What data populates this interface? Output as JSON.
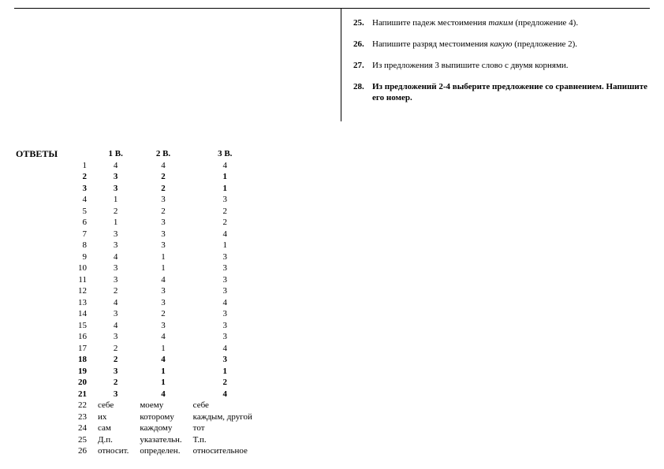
{
  "tasks": [
    {
      "num": "25.",
      "text_before": "Напишите падеж местоимения ",
      "italic": "таким",
      "text_after": " (предложение 4).",
      "bold": false
    },
    {
      "num": "26.",
      "text_before": "Напишите разряд местоимения ",
      "italic": "какую",
      "text_after": " (предложение 2).",
      "bold": false
    },
    {
      "num": "27.",
      "text_before": "Из предложения 3  выпишите слово с двумя корнями.",
      "italic": "",
      "text_after": "",
      "bold": false
    },
    {
      "num": "28.",
      "text_before": "Из предложений 2-4 выберите предложение со сравнением. Напишите его номер.",
      "italic": "",
      "text_after": "",
      "bold": true
    }
  ],
  "answers": {
    "label": "ОТВЕТЫ",
    "headers": [
      "",
      "1 В.",
      "2 В.",
      "3 В."
    ],
    "rows": [
      {
        "n": "1",
        "v": [
          "4",
          "4",
          "4"
        ],
        "bold": false
      },
      {
        "n": "2",
        "v": [
          "3",
          "2",
          "1"
        ],
        "bold": true
      },
      {
        "n": "3",
        "v": [
          "3",
          "2",
          "1"
        ],
        "bold": true
      },
      {
        "n": "4",
        "v": [
          "1",
          "3",
          "3"
        ],
        "bold": false
      },
      {
        "n": "5",
        "v": [
          "2",
          "2",
          "2"
        ],
        "bold": false
      },
      {
        "n": "6",
        "v": [
          "1",
          "3",
          "2"
        ],
        "bold": false
      },
      {
        "n": "7",
        "v": [
          "3",
          "3",
          "4"
        ],
        "bold": false
      },
      {
        "n": "8",
        "v": [
          "3",
          "3",
          "1"
        ],
        "bold": false
      },
      {
        "n": "9",
        "v": [
          "4",
          "1",
          "3"
        ],
        "bold": false
      },
      {
        "n": "10",
        "v": [
          "3",
          "1",
          "3"
        ],
        "bold": false
      },
      {
        "n": "11",
        "v": [
          "3",
          "4",
          "3"
        ],
        "bold": false
      },
      {
        "n": "12",
        "v": [
          "2",
          "3",
          "3"
        ],
        "bold": false
      },
      {
        "n": "13",
        "v": [
          "4",
          "3",
          "4"
        ],
        "bold": false
      },
      {
        "n": "14",
        "v": [
          "3",
          "2",
          "3"
        ],
        "bold": false
      },
      {
        "n": "15",
        "v": [
          "4",
          "3",
          "3"
        ],
        "bold": false
      },
      {
        "n": "16",
        "v": [
          "3",
          "4",
          "3"
        ],
        "bold": false
      },
      {
        "n": "17",
        "v": [
          "2",
          "1",
          "4"
        ],
        "bold": false
      },
      {
        "n": "18",
        "v": [
          "2",
          "4",
          "3"
        ],
        "bold": true
      },
      {
        "n": "19",
        "v": [
          "3",
          "1",
          "1"
        ],
        "bold": true
      },
      {
        "n": "20",
        "v": [
          "2",
          "1",
          "2"
        ],
        "bold": true
      },
      {
        "n": "21",
        "v": [
          "3",
          "4",
          "4"
        ],
        "bold": true
      },
      {
        "n": "22",
        "v": [
          "себе",
          "моему",
          "себе"
        ],
        "bold": false,
        "words": true
      },
      {
        "n": "23",
        "v": [
          "их",
          "которому",
          "каждым, другой"
        ],
        "bold": false,
        "words": true
      },
      {
        "n": "24",
        "v": [
          "сам",
          "каждому",
          "тот"
        ],
        "bold": false,
        "words": true
      },
      {
        "n": "25",
        "v": [
          "Д.п.",
          "указательн.",
          "Т.п."
        ],
        "bold": false,
        "words": true
      },
      {
        "n": "26",
        "v": [
          "относит.",
          "определен.",
          "относительное"
        ],
        "bold": false,
        "words": true
      }
    ]
  }
}
